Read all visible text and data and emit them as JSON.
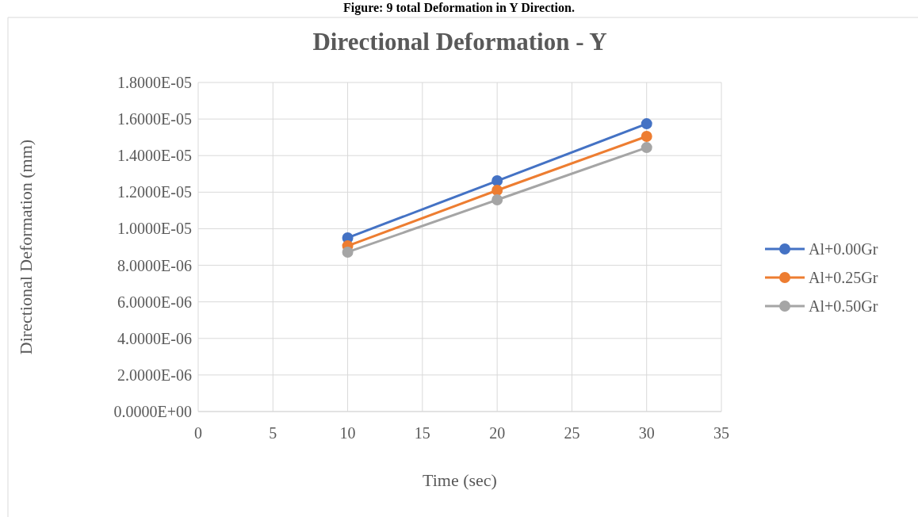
{
  "chart_data": {
    "type": "line",
    "title": "Directional Deformation - Y",
    "annotations": [
      "Figure: 9 total Deformation in Y Direction."
    ],
    "xlabel": "Time (sec)",
    "ylabel": "Directional Deformation (mm)",
    "x": [
      10,
      20,
      30
    ],
    "series": [
      {
        "name": "Al+0.00Gr",
        "color": "#4472c4",
        "values": [
          9.5e-06,
          1.262e-05,
          1.574e-05
        ]
      },
      {
        "name": "Al+0.25Gr",
        "color": "#ed7d31",
        "values": [
          9.06e-06,
          1.21e-05,
          1.505e-05
        ]
      },
      {
        "name": "Al+0.50Gr",
        "color": "#a5a5a5",
        "values": [
          8.72e-06,
          1.158e-05,
          1.444e-05
        ]
      }
    ],
    "xlim": [
      0,
      35
    ],
    "xticks": [
      0,
      5,
      10,
      15,
      20,
      25,
      30,
      35
    ],
    "ylim": [
      0,
      1.8e-05
    ],
    "yticks": [
      {
        "value": 0,
        "label": "0.0000E+00"
      },
      {
        "value": 2e-06,
        "label": "2.0000E-06"
      },
      {
        "value": 4e-06,
        "label": "4.0000E-06"
      },
      {
        "value": 6e-06,
        "label": "6.0000E-06"
      },
      {
        "value": 8e-06,
        "label": "8.0000E-06"
      },
      {
        "value": 1e-05,
        "label": "1.0000E-05"
      },
      {
        "value": 1.2e-05,
        "label": "1.2000E-05"
      },
      {
        "value": 1.4e-05,
        "label": "1.4000E-05"
      },
      {
        "value": 1.6e-05,
        "label": "1.6000E-05"
      },
      {
        "value": 1.8e-05,
        "label": "1.8000E-05"
      }
    ],
    "grid": true,
    "legend": "right",
    "marker": "circle",
    "line_style": "solid"
  }
}
